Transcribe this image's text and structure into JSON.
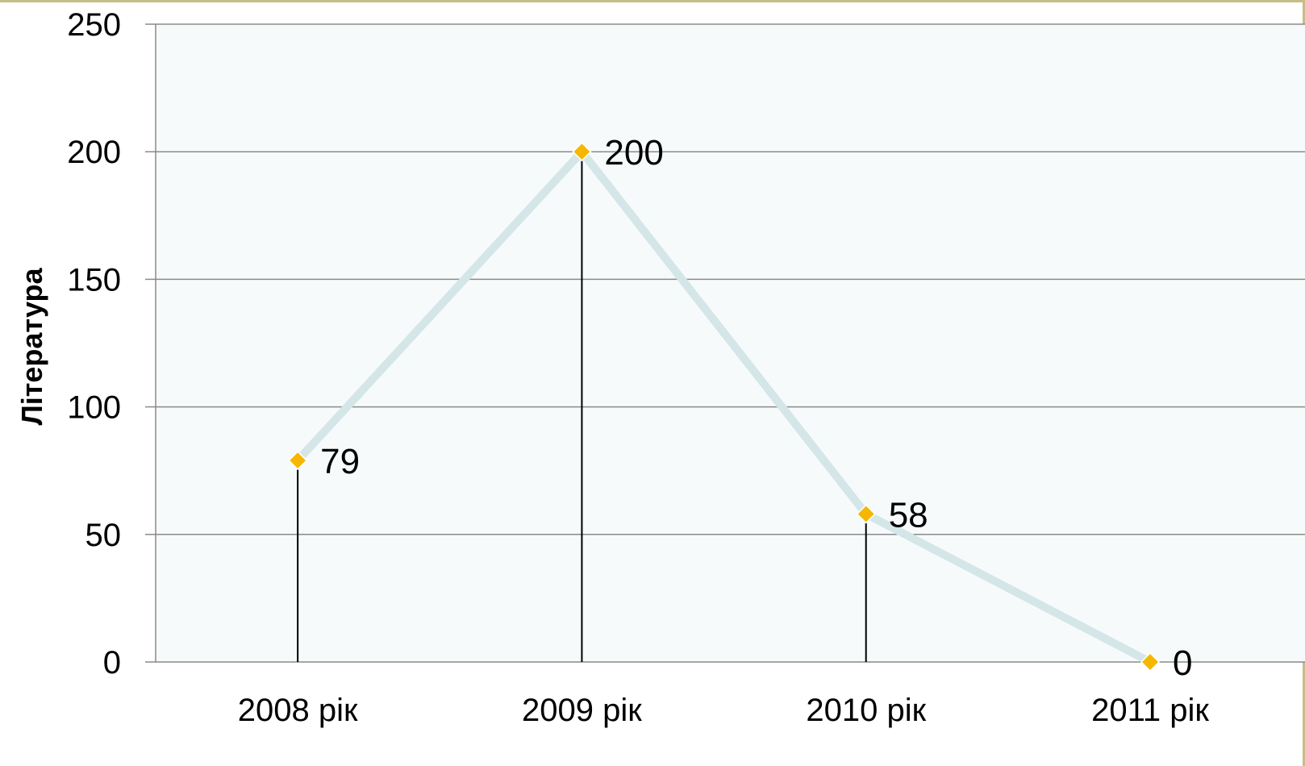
{
  "chart_data": {
    "type": "line",
    "title": "",
    "xlabel": "",
    "ylabel": "Література",
    "categories": [
      "2008 рік",
      "2009 рік",
      "2010 рік",
      "2011 рік"
    ],
    "series": [
      {
        "values": [
          79,
          200,
          58,
          0
        ]
      }
    ],
    "data_labels": [
      "79",
      "200",
      "58",
      "0"
    ],
    "yticks": [
      0,
      50,
      100,
      150,
      200,
      250
    ],
    "ylim": [
      0,
      250
    ],
    "grid": true,
    "drop_lines": true,
    "colors": {
      "plot_background": "#f7fafb",
      "line": "#d4e6e7",
      "marker": "#f5b700",
      "gridline": "#8a8a8a",
      "drop_line": "#000000",
      "frame": "#c7bd86"
    }
  }
}
